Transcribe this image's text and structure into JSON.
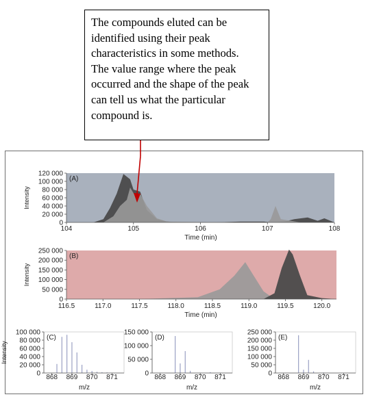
{
  "callout": {
    "lines": [
      "The compounds eluted can be",
      "identified using their peak",
      "characteristics in some methods.",
      "The value range where the peak",
      "occurred and the shape of the peak",
      "can tell us what the particular",
      "compound is."
    ]
  },
  "colors": {
    "panel_a_bg": "#a9b1bd",
    "panel_b_bg": "#deaaaa",
    "dark_peak": "#4a4a4a",
    "light_peak": "#999999",
    "arrow": "#c00000",
    "spectrum_line": "#9aa0c4"
  },
  "chart_data": [
    {
      "panel": "(A)",
      "type": "area",
      "xlabel": "Time (min)",
      "ylabel": "Intensity",
      "xlim": [
        104,
        108
      ],
      "ylim": [
        0,
        120000
      ],
      "x_ticks": [
        "104",
        "105",
        "106",
        "107",
        "108"
      ],
      "y_ticks": [
        "0",
        "20000",
        "40000",
        "60000",
        "80000",
        "100000",
        "120000"
      ],
      "series": [
        {
          "color": "dark",
          "x": [
            104.4,
            104.55,
            104.65,
            104.75,
            104.85,
            104.95,
            105.0,
            105.1,
            105.2,
            105.35,
            105.5,
            105.7,
            106.2,
            106.6,
            106.95,
            107.05,
            107.25,
            107.4,
            107.6,
            107.75,
            107.85,
            108.0
          ],
          "y": [
            0,
            8000,
            35000,
            70000,
            118000,
            105000,
            80000,
            75000,
            30000,
            8000,
            2000,
            0,
            0,
            2000,
            2000,
            0,
            2000,
            8000,
            12000,
            4000,
            10000,
            0
          ]
        },
        {
          "color": "light",
          "x": [
            104.55,
            104.7,
            104.8,
            104.9,
            104.95,
            105.05,
            105.1,
            105.2,
            105.35,
            105.5,
            106.5,
            107.0,
            107.05,
            107.12,
            107.2,
            107.5,
            107.9,
            108.0
          ],
          "y": [
            0,
            15000,
            40000,
            55000,
            85000,
            58000,
            70000,
            40000,
            10000,
            2000,
            0,
            0,
            8000,
            40000,
            8000,
            0,
            0,
            0
          ]
        }
      ]
    },
    {
      "panel": "(B)",
      "type": "area",
      "xlabel": "Time (min)",
      "ylabel": "Intensity",
      "xlim": [
        116.5,
        120.2
      ],
      "ylim": [
        0,
        250000
      ],
      "x_ticks": [
        "116.5",
        "117.0",
        "117.5",
        "118.0",
        "118.5",
        "119.0",
        "119.5",
        "120.0"
      ],
      "y_ticks": [
        "0",
        "50000",
        "100000",
        "150000",
        "200000",
        "250000"
      ],
      "series": [
        {
          "color": "light",
          "x": [
            116.5,
            117.5,
            118.3,
            118.6,
            118.8,
            118.95,
            119.05,
            119.2,
            119.35,
            120.2
          ],
          "y": [
            0,
            0,
            10000,
            50000,
            120000,
            190000,
            130000,
            40000,
            0,
            0
          ]
        },
        {
          "color": "dark",
          "x": [
            116.5,
            117.0,
            118.0,
            119.2,
            119.35,
            119.45,
            119.55,
            119.6,
            119.7,
            119.8,
            120.0,
            120.2
          ],
          "y": [
            0,
            0,
            0,
            0,
            30000,
            160000,
            255000,
            230000,
            120000,
            20000,
            5000,
            0
          ]
        }
      ]
    },
    {
      "panel": "(C)",
      "type": "bar",
      "xlabel": "m/z",
      "ylabel": "Intensity",
      "xlim": [
        867.6,
        871.6
      ],
      "ylim": [
        0,
        100000
      ],
      "x_ticks": [
        "868",
        "869",
        "870",
        "871"
      ],
      "y_ticks": [
        "0",
        "20000",
        "40000",
        "60000",
        "80000",
        "100000"
      ],
      "peaks": {
        "x": [
          868.25,
          868.5,
          868.75,
          869.0,
          869.25,
          869.5,
          869.75,
          870.0,
          870.25,
          870.5,
          870.75
        ],
        "y": [
          22000,
          88000,
          93000,
          75000,
          50000,
          20000,
          8000,
          5000,
          3000,
          2000,
          1500
        ]
      }
    },
    {
      "panel": "(D)",
      "type": "bar",
      "xlabel": "m/z",
      "ylabel": "",
      "xlim": [
        867.6,
        871.6
      ],
      "ylim": [
        0,
        150000
      ],
      "x_ticks": [
        "868",
        "869",
        "870",
        "871"
      ],
      "y_ticks": [
        "0",
        "50000",
        "100000",
        "150000"
      ],
      "peaks": {
        "x": [
          868.75,
          869.0,
          869.25,
          869.5,
          870.5
        ],
        "y": [
          135000,
          35000,
          80000,
          8000,
          3000
        ]
      }
    },
    {
      "panel": "(E)",
      "type": "bar",
      "xlabel": "m/z",
      "ylabel": "",
      "xlim": [
        867.6,
        871.6
      ],
      "ylim": [
        0,
        250000
      ],
      "x_ticks": [
        "868",
        "869",
        "870",
        "871"
      ],
      "y_ticks": [
        "0",
        "50000",
        "100000",
        "150000",
        "200000",
        "250000"
      ],
      "peaks": {
        "x": [
          868.75,
          869.0,
          869.25,
          869.5,
          870.0
        ],
        "y": [
          230000,
          20000,
          80000,
          10000,
          3000
        ]
      }
    }
  ]
}
